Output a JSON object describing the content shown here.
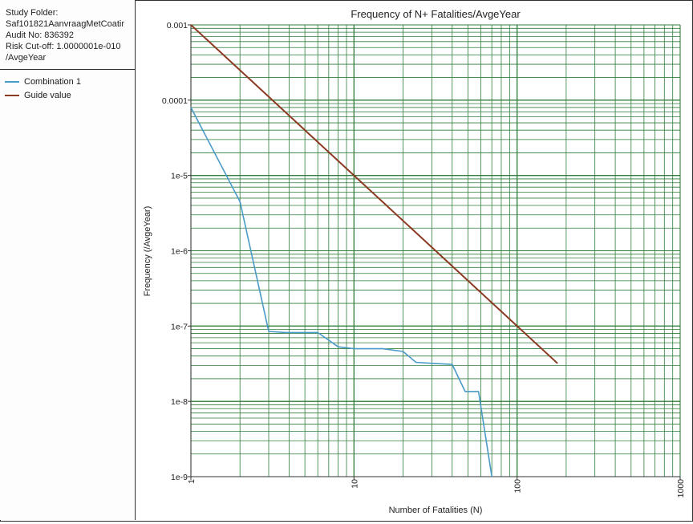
{
  "info": {
    "study_folder_label": "Study Folder:",
    "study_folder_value": "Saf101821AanvraagMetCoatir",
    "audit": "Audit No: 836392",
    "risk_cutoff": "Risk Cut-off: 1.0000001e-010",
    "risk_cutoff_unit": "/AvgeYear"
  },
  "colors": {
    "grid": "#2f7d3a",
    "combination": "#4a9ac8",
    "guide": "#8b3a22"
  },
  "chart_data": {
    "type": "line",
    "title": "Frequency of N+ Fatalities/AvgeYear",
    "xlabel": "Number of Fatalities (N)",
    "ylabel": "Frequency (/AvgeYear)",
    "x_scale": "log",
    "y_scale": "log",
    "xlim": [
      1,
      1000
    ],
    "ylim": [
      1e-09,
      0.001
    ],
    "grid": true,
    "legend_position": "left-panel",
    "x_tick_labels": [
      "1",
      "10",
      "100",
      "1000"
    ],
    "y_tick_labels": [
      "0.001",
      "0.0001",
      "1e-5",
      "1e-6",
      "1e-7",
      "1e-8",
      "1e-9"
    ],
    "series": [
      {
        "name": "Combination 1",
        "color_key": "combination",
        "points": [
          [
            1,
            8e-05
          ],
          [
            2,
            4.5e-06
          ],
          [
            3,
            8.5e-08
          ],
          [
            3.8,
            8.2e-08
          ],
          [
            6,
            8.2e-08
          ],
          [
            8,
            5.3e-08
          ],
          [
            10,
            5e-08
          ],
          [
            15,
            5e-08
          ],
          [
            20,
            4.6e-08
          ],
          [
            24,
            3.3e-08
          ],
          [
            30,
            3.2e-08
          ],
          [
            40,
            3.1e-08
          ],
          [
            48,
            1.35e-08
          ],
          [
            58,
            1.35e-08
          ],
          [
            70,
            1e-09
          ]
        ]
      },
      {
        "name": "Guide value",
        "color_key": "guide",
        "points": [
          [
            1,
            0.001
          ],
          [
            177,
            3.2e-08
          ]
        ]
      }
    ]
  }
}
